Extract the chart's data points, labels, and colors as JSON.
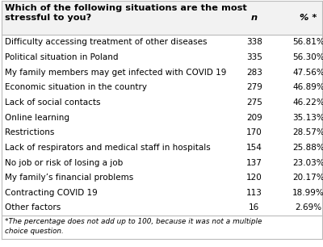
{
  "header_question": "Which of the following situations are the most\nstressful to you?",
  "col_n": "n",
  "col_pct": "% *",
  "rows": [
    {
      "label": "Difficulty accessing treatment of other diseases",
      "n": "338",
      "pct": "56.81%"
    },
    {
      "label": "Political situation in Poland",
      "n": "335",
      "pct": "56.30%"
    },
    {
      "label": "My family members may get infected with COVID 19",
      "n": "283",
      "pct": "47.56%"
    },
    {
      "label": "Economic situation in the country",
      "n": "279",
      "pct": "46.89%"
    },
    {
      "label": "Lack of social contacts",
      "n": "275",
      "pct": "46.22%"
    },
    {
      "label": "Online learning",
      "n": "209",
      "pct": "35.13%"
    },
    {
      "label": "Restrictions",
      "n": "170",
      "pct": "28.57%"
    },
    {
      "label": "Lack of respirators and medical staff in hospitals",
      "n": "154",
      "pct": "25.88%"
    },
    {
      "label": "No job or risk of losing a job",
      "n": "137",
      "pct": "23.03%"
    },
    {
      "label": "My family’s financial problems",
      "n": "120",
      "pct": "20.17%"
    },
    {
      "label": "Contracting COVID 19",
      "n": "113",
      "pct": "18.99%"
    },
    {
      "label": "Other factors",
      "n": "16",
      "pct": "2.69%"
    }
  ],
  "footnote": "*The percentage does not add up to 100, because it was not a multiple\nchoice question.",
  "bg_color": "#ffffff",
  "border_color": "#bbbbbb",
  "text_color": "#000000",
  "font_size": 7.5,
  "header_font_size": 8.2
}
